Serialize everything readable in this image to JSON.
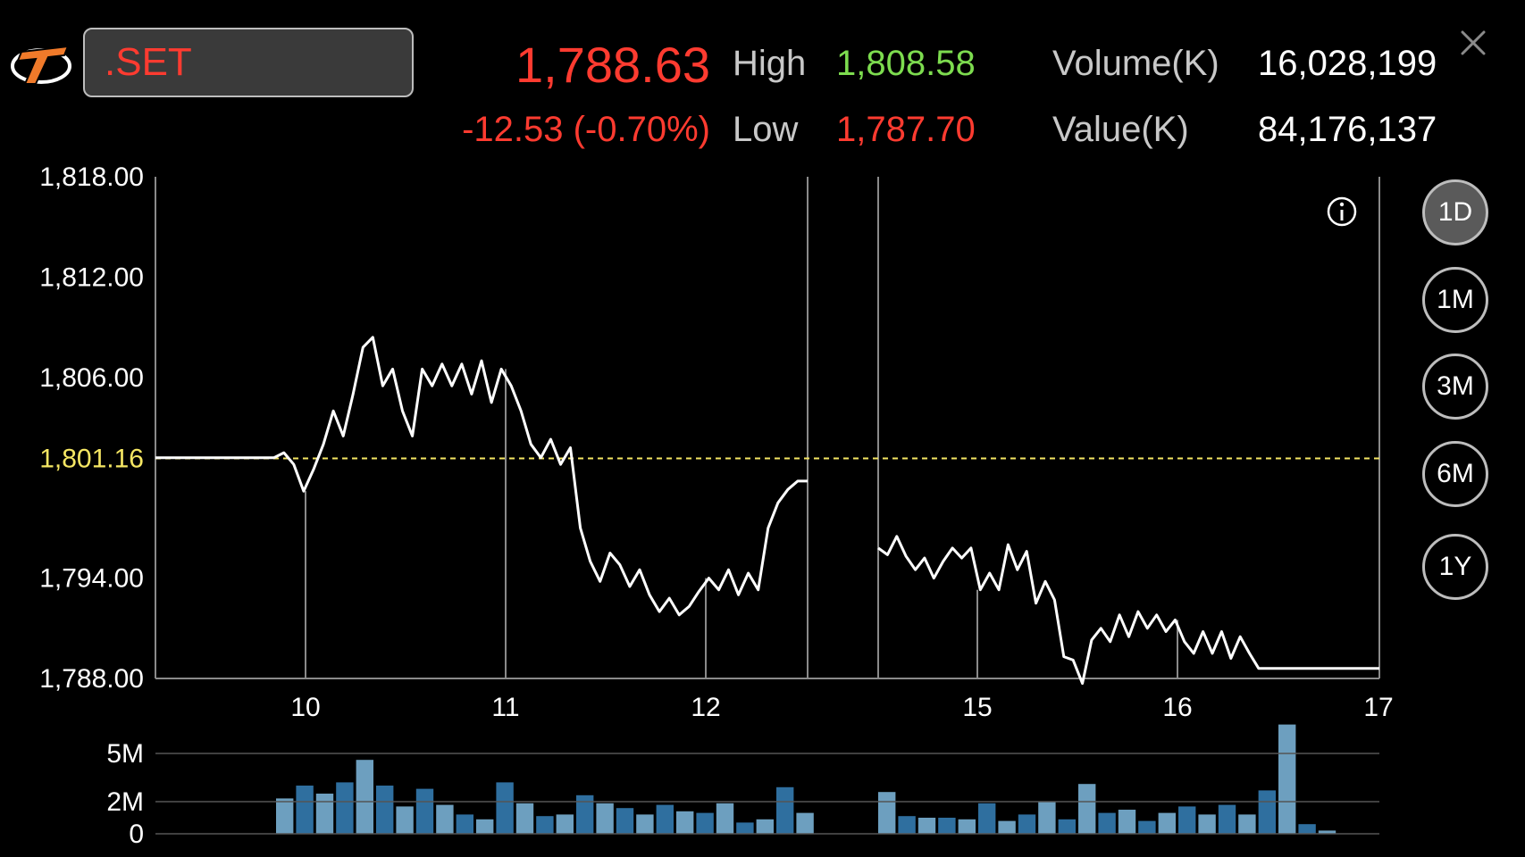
{
  "header": {
    "symbol": ".SET",
    "last": "1,788.63",
    "change": "-12.53 (-0.70%)",
    "high_label": "High",
    "high_value": "1,808.58",
    "low_label": "Low",
    "low_value": "1,787.70",
    "volume_label": "Volume(K)",
    "volume_value": "16,028,199",
    "value_label": "Value(K)",
    "value_value": "84,176,137"
  },
  "colors": {
    "up": "#7ddc4f",
    "down": "#ff3b30",
    "reference": "#f5e663",
    "volume_bar_dark": "#2f6f9f",
    "volume_bar_light": "#6d9fbf"
  },
  "icons": {
    "close": "close-icon",
    "info": "info-icon",
    "logo": "brand-logo-icon"
  },
  "timeframes": [
    {
      "label": "1D",
      "active": true
    },
    {
      "label": "1M",
      "active": false
    },
    {
      "label": "3M",
      "active": false
    },
    {
      "label": "6M",
      "active": false
    },
    {
      "label": "1Y",
      "active": false
    }
  ],
  "chart_data": {
    "type": "line",
    "ylim": [
      1788,
      1818
    ],
    "y_ticks": [
      "1,818.00",
      "1,812.00",
      "1,806.00",
      "1,794.00",
      "1,788.00"
    ],
    "y_tick_values": [
      1818,
      1812,
      1806,
      1794,
      1788
    ],
    "reference_value": 1801.16,
    "reference_label": "1,801.16",
    "x_ticks": [
      "10",
      "11",
      "12",
      "15",
      "16",
      "17"
    ],
    "grid": true,
    "series": [
      {
        "session": "10-12",
        "values": [
          1801.2,
          1801.2,
          1801.2,
          1801.2,
          1801.2,
          1801.2,
          1801.2,
          1801.2,
          1801.2,
          1801.2,
          1801.2,
          1801.2,
          1801.2,
          1801.5,
          1800.8,
          1799.2,
          1800.5,
          1802.0,
          1804.0,
          1802.5,
          1805.0,
          1807.8,
          1808.4,
          1805.5,
          1806.5,
          1804.0,
          1802.5,
          1806.5,
          1805.5,
          1806.8,
          1805.5,
          1806.8,
          1805.0,
          1807.0,
          1804.5,
          1806.5,
          1805.5,
          1804.0,
          1802.0,
          1801.2,
          1802.3,
          1800.8,
          1801.8,
          1797.0,
          1795.0,
          1793.8,
          1795.5,
          1794.8,
          1793.5,
          1794.5,
          1793.0,
          1792.0,
          1792.8,
          1791.8,
          1792.3,
          1793.2,
          1794.0,
          1793.3,
          1794.5,
          1793.0,
          1794.3,
          1793.3,
          1797.0,
          1798.5,
          1799.3,
          1799.8,
          1799.8
        ]
      },
      {
        "session": "15-17",
        "values": [
          1795.8,
          1795.4,
          1796.5,
          1795.3,
          1794.5,
          1795.2,
          1794.0,
          1795.0,
          1795.8,
          1795.2,
          1795.8,
          1793.3,
          1794.3,
          1793.3,
          1796.0,
          1794.5,
          1795.6,
          1792.5,
          1793.8,
          1792.7,
          1789.3,
          1789.1,
          1787.7,
          1790.3,
          1791.0,
          1790.2,
          1791.8,
          1790.5,
          1792.0,
          1791.0,
          1791.8,
          1790.8,
          1791.5,
          1790.2,
          1789.5,
          1790.8,
          1789.5,
          1790.8,
          1789.2,
          1790.5,
          1789.5,
          1788.6,
          1788.6,
          1788.6,
          1788.6,
          1788.6,
          1788.6,
          1788.6,
          1788.6,
          1788.6,
          1788.6,
          1788.6,
          1788.6,
          1788.6,
          1788.6
        ]
      }
    ],
    "volume": {
      "y_ticks": [
        "5M",
        "2M",
        "0"
      ],
      "y_tick_values": [
        5,
        2,
        0
      ],
      "ylim": [
        0,
        5
      ],
      "session_1": [
        2.2,
        3.0,
        2.5,
        3.2,
        4.6,
        3.0,
        1.7,
        2.8,
        1.8,
        1.2,
        0.9,
        3.2,
        1.9,
        1.1,
        1.2,
        2.4,
        1.9,
        1.6,
        1.2,
        1.8,
        1.4,
        1.3,
        1.9,
        0.7,
        0.9,
        2.9,
        1.3
      ],
      "session_2": [
        2.6,
        1.1,
        1.0,
        1.0,
        0.9,
        1.9,
        0.8,
        1.2,
        2.0,
        0.9,
        3.1,
        1.3,
        1.5,
        0.8,
        1.3,
        1.7,
        1.2,
        1.8,
        1.2,
        2.7,
        6.8,
        0.6,
        0.2
      ]
    }
  }
}
